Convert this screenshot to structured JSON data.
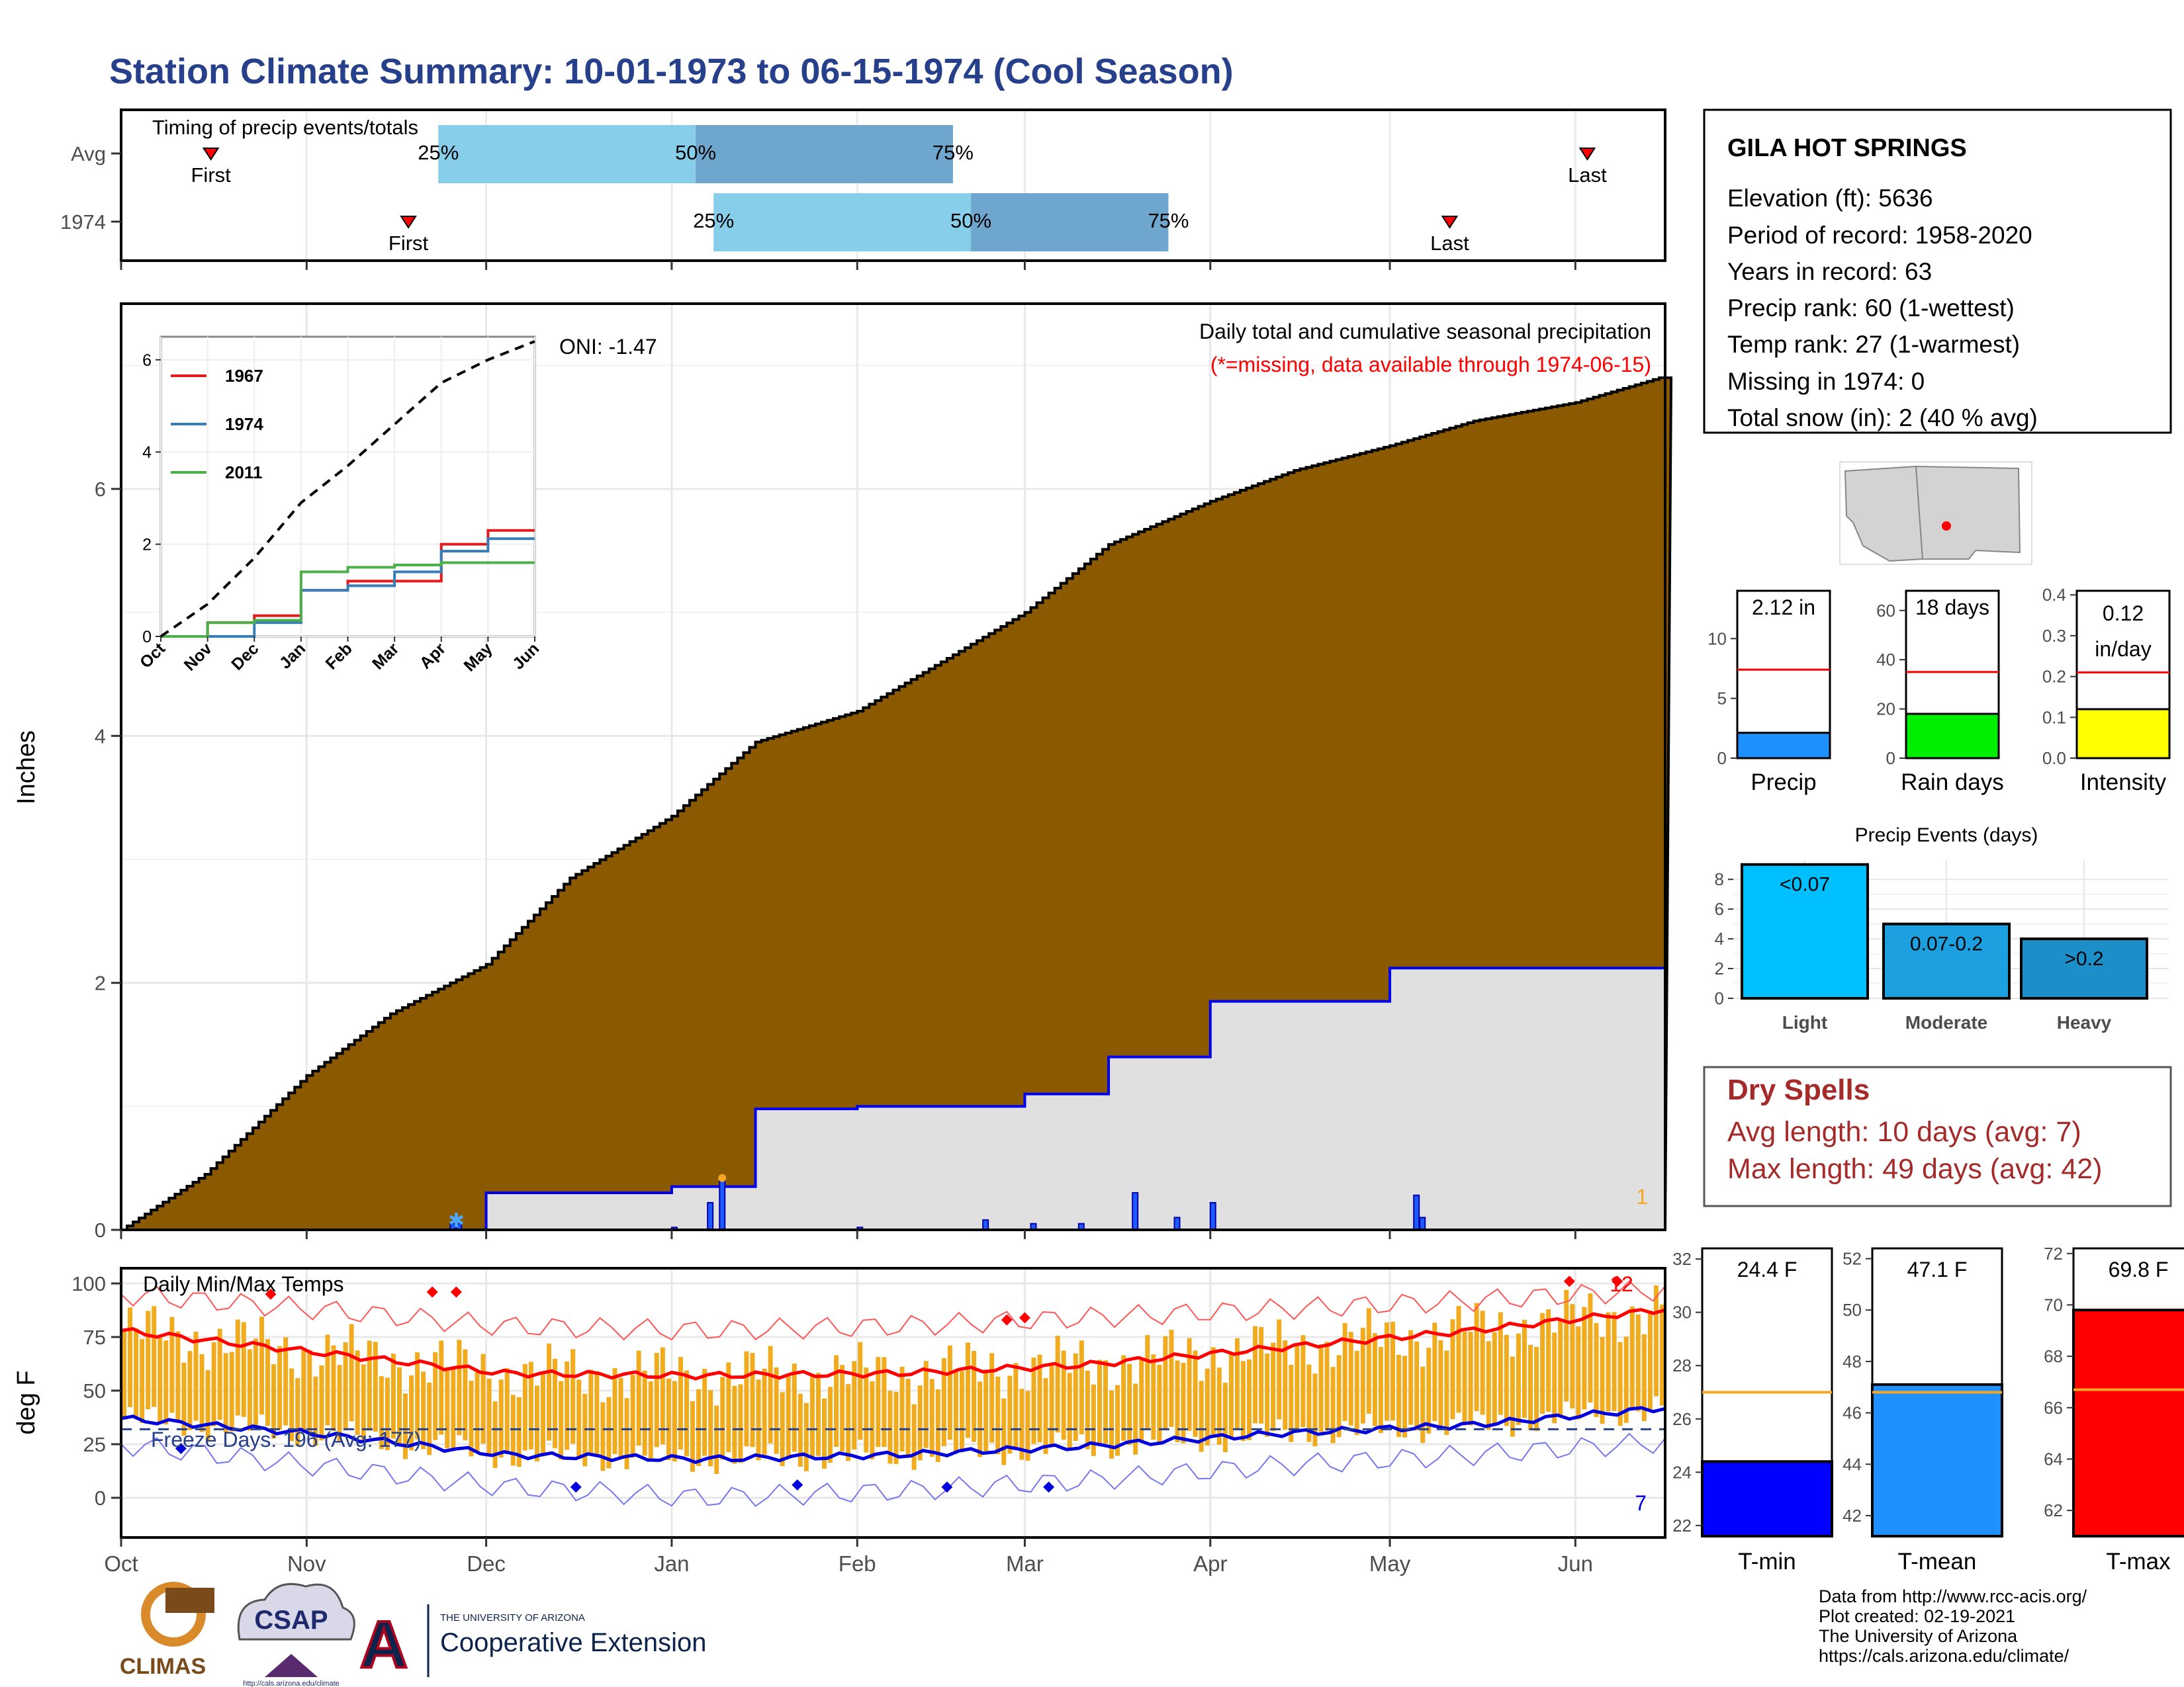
{
  "title": "Station Climate Summary: 10-01-1973 to 06-15-1974 (Cool Season)",
  "colors": {
    "title": "#27408b",
    "cum_fill": "#8b5a00",
    "avg_fill": "#e0e0e0",
    "series_line": "#0000ee",
    "temp_bar": "#f0ac1e",
    "dry_spells": "#a52a2a",
    "light_blue": "#87ceeb",
    "steel_blue": "#6fa6cd"
  },
  "timing_panel": {
    "heading": "Timing of precip events/totals",
    "rows": [
      {
        "label": "Avg",
        "first": "First",
        "last": "Last",
        "p25": "25%",
        "p50": "50%",
        "p75": "75%",
        "first_day": 15,
        "p25_day": 53,
        "p50_day": 96,
        "p75_day": 139,
        "last_day": 245
      },
      {
        "label": "1974",
        "first": "First",
        "last": "Last",
        "p25": "25%",
        "p50": "50%",
        "p75": "75%",
        "first_day": 48,
        "p25_day": 99,
        "p50_day": 142,
        "p75_day": 175,
        "last_day": 222
      }
    ]
  },
  "precip_panel": {
    "ylabel": "Inches",
    "header": "Daily total and cumulative seasonal precipitation",
    "note": "(*=missing, data available through 1974-06-15)",
    "oni": "ONI: -1.47",
    "corner_count": "1"
  },
  "inset": {
    "legend": [
      "1967",
      "1974",
      "2011"
    ],
    "legend_colors": [
      "#e41a1c",
      "#377eb8",
      "#4daf4a"
    ],
    "y_ticks": [
      "0",
      "2",
      "4",
      "6"
    ],
    "x_ticks": [
      "Oct",
      "Nov",
      "Dec",
      "Jan",
      "Feb",
      "Mar",
      "Apr",
      "May",
      "Jun"
    ]
  },
  "temp_panel": {
    "ylabel": "deg F",
    "header": "Daily Min/Max Temps",
    "freeze": "Freeze Days: 196 (Avg: 177)",
    "hot_count": "12",
    "cold_count": "7",
    "y_ticks": [
      "0",
      "25",
      "50",
      "75",
      "100"
    ]
  },
  "x_axis": {
    "months": [
      "Oct",
      "Nov",
      "Dec",
      "Jan",
      "Feb",
      "Mar",
      "Apr",
      "May",
      "Jun"
    ]
  },
  "station": {
    "name": "GILA HOT SPRINGS",
    "lines": [
      "Elevation (ft): 5636",
      "Period of record: 1958-2020",
      "Years in record: 63",
      "Precip rank: 60 (1-wettest)",
      "Temp rank: 27 (1-warmest)",
      "Missing in 1974: 0",
      "Total snow (in): 2 (40 % avg)"
    ]
  },
  "mini_bars": [
    {
      "label": "Precip",
      "value_text": "2.12 in",
      "value": 2.12,
      "avg": 7.4,
      "max": 14,
      "ticks": [
        "0",
        "5",
        "10"
      ],
      "tick_vals": [
        0,
        5,
        10
      ],
      "color": "#1e90ff"
    },
    {
      "label": "Rain days",
      "value_text": "18 days",
      "value": 18,
      "avg": 35,
      "max": 68,
      "ticks": [
        "0",
        "20",
        "40",
        "60"
      ],
      "tick_vals": [
        0,
        20,
        40,
        60
      ],
      "color": "#00ee00"
    },
    {
      "label": "Intensity",
      "value_text": "0.12 in/day",
      "value_line1": "0.12",
      "value_line2": "in/day",
      "value": 0.12,
      "avg": 0.21,
      "max": 0.41,
      "ticks": [
        "0.0",
        "0.1",
        "0.2",
        "0.3",
        "0.4"
      ],
      "tick_vals": [
        0,
        0.1,
        0.2,
        0.3,
        0.4
      ],
      "color": "#ffff00"
    }
  ],
  "events": {
    "title": "Precip Events (days)",
    "categories": [
      "Light",
      "Moderate",
      "Heavy"
    ],
    "ranges": [
      "<0.07",
      "0.07-0.2",
      ">0.2"
    ],
    "values": [
      9,
      5,
      4
    ],
    "ticks": [
      "0",
      "2",
      "4",
      "6",
      "8"
    ],
    "colors": [
      "#00bfff",
      "#1ca0e0",
      "#1c8fc8"
    ]
  },
  "dry_spells": {
    "title": "Dry Spells",
    "avg": "Avg length: 10 days (avg: 7)",
    "max": "Max length: 49 days (avg: 42)"
  },
  "temp_bars": [
    {
      "label": "T-min",
      "value_text": "24.4 F",
      "value": 24.4,
      "avg": 27.0,
      "min": 21.6,
      "max": 32.4,
      "ticks": [
        "22",
        "24",
        "26",
        "28",
        "30",
        "32"
      ],
      "tick_vals": [
        22,
        24,
        26,
        28,
        30,
        32
      ],
      "color": "#0000ff"
    },
    {
      "label": "T-mean",
      "value_text": "47.1 F",
      "value": 47.1,
      "avg": 46.8,
      "min": 41.2,
      "max": 52.4,
      "ticks": [
        "42",
        "44",
        "46",
        "48",
        "50",
        "52"
      ],
      "tick_vals": [
        42,
        44,
        46,
        48,
        50,
        52
      ],
      "color": "#1e90ff"
    },
    {
      "label": "T-max",
      "value_text": "69.8 F",
      "value": 69.8,
      "avg": 66.7,
      "min": 61.0,
      "max": 72.2,
      "ticks": [
        "62",
        "64",
        "66",
        "68",
        "70",
        "72"
      ],
      "tick_vals": [
        62,
        64,
        66,
        68,
        70,
        72
      ],
      "color": "#ff0000"
    }
  ],
  "footer": {
    "lines": [
      "Data from http://www.rcc-acis.org/",
      "Plot created: 02-19-2021",
      "The University of Arizona",
      "https://cals.arizona.edu/climate/"
    ],
    "logo_climas": "CLIMAS",
    "logo_csap": "CSAP",
    "csap_url": "http://cals.arizona.edu/climate",
    "ua_small": "THE UNIVERSITY OF ARIZONA",
    "ua_big": "Cooperative Extension"
  },
  "chart_data": [
    {
      "type": "area",
      "title": "Daily total and cumulative seasonal precipitation",
      "ylabel": "Inches",
      "ylim": [
        0,
        7.5
      ],
      "x": [
        "10-01",
        "10-15",
        "11-01",
        "11-15",
        "12-01",
        "12-15",
        "01-01",
        "01-15",
        "02-01",
        "02-15",
        "03-01",
        "03-15",
        "04-01",
        "04-15",
        "05-01",
        "05-15",
        "06-01",
        "06-15"
      ],
      "series": [
        {
          "name": "",
          "values": [
            0.0,
            0.45,
            1.25,
            1.75,
            2.15,
            2.85,
            3.35,
            3.95,
            4.2,
            4.6,
            5.0,
            5.55,
            5.9,
            6.15,
            6.35,
            6.55,
            6.7,
            6.9
          ]
        },
        {
          "name": "",
          "values": [
            0.0,
            0.0,
            0.0,
            0.0,
            0.3,
            0.3,
            0.35,
            0.98,
            1.0,
            1.0,
            1.1,
            1.4,
            1.85,
            1.85,
            2.12,
            2.12,
            2.12,
            2.12
          ]
        }
      ],
      "daily_precip": {
        "dates": [
          "11-25",
          "11-26",
          "01-01",
          "01-07",
          "01-09",
          "02-01",
          "02-22",
          "03-02",
          "03-10",
          "03-19",
          "03-26",
          "04-01",
          "05-05",
          "05-06"
        ],
        "values": [
          0.05,
          0.05,
          0.02,
          0.22,
          0.4,
          0.02,
          0.08,
          0.05,
          0.05,
          0.3,
          0.1,
          0.22,
          0.28,
          0.1
        ]
      }
    },
    {
      "type": "line",
      "title": "",
      "x": [
        "Oct",
        "Nov",
        "Dec",
        "Jan",
        "Feb",
        "Mar",
        "Apr",
        "May",
        "Jun"
      ],
      "ylim": [
        0,
        6.5
      ],
      "series": [
        {
          "name": "1967",
          "values": [
            0.0,
            0.3,
            0.45,
            1.0,
            1.2,
            1.2,
            2.0,
            2.3,
            2.3
          ]
        },
        {
          "name": "1974",
          "values": [
            0.0,
            0.0,
            0.3,
            1.0,
            1.1,
            1.4,
            1.85,
            2.12,
            2.12
          ]
        },
        {
          "name": "2011",
          "values": [
            0.0,
            0.3,
            0.35,
            1.4,
            1.5,
            1.55,
            1.6,
            1.6,
            1.6
          ]
        },
        {
          "name": "",
          "values": [
            0.0,
            0.7,
            1.7,
            2.9,
            3.7,
            4.6,
            5.5,
            6.0,
            6.4
          ]
        }
      ]
    },
    {
      "type": "line",
      "title": "Daily Min/Max Temps",
      "ylabel": "deg F",
      "ylim": [
        -20,
        105
      ],
      "x": [
        "Oct",
        "Nov",
        "Dec",
        "Jan",
        "Feb",
        "Mar",
        "Apr",
        "May",
        "Jun"
      ],
      "series": [
        {
          "name": "",
          "values": [
            78,
            68,
            58,
            57,
            58,
            62,
            70,
            78,
            88
          ]
        },
        {
          "name": "",
          "values": [
            37,
            30,
            20,
            18,
            20,
            24,
            30,
            34,
            42
          ]
        },
        {
          "name": "",
          "values": [
            95,
            88,
            80,
            78,
            80,
            84,
            88,
            92,
            97
          ]
        },
        {
          "name": "",
          "values": [
            25,
            15,
            5,
            0,
            3,
            8,
            15,
            20,
            26
          ]
        }
      ],
      "freeze_line": 32
    },
    {
      "type": "bar",
      "title": "Precip Events (days)",
      "categories": [
        "Light",
        "Moderate",
        "Heavy"
      ],
      "values": [
        9,
        5,
        4
      ],
      "ylim": [
        0,
        9.3
      ]
    }
  ]
}
